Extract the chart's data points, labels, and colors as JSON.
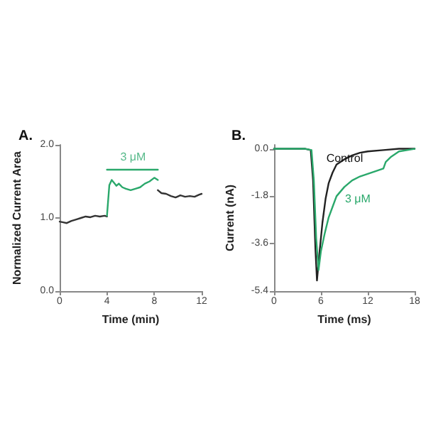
{
  "chart_data": [
    {
      "type": "line",
      "title": "A.",
      "xlabel": "Time (min)",
      "ylabel": "Normalized Current Area",
      "xlim": [
        0,
        12
      ],
      "xticks": [
        0,
        4,
        8,
        12
      ],
      "ylim": [
        0,
        2
      ],
      "yticks": [
        {
          "value": 0,
          "label": "0.0"
        },
        {
          "value": 1,
          "label": "1.0"
        },
        {
          "value": 2,
          "label": "2.0"
        }
      ],
      "grid": false,
      "legend": false,
      "marker": "none",
      "series": [
        {
          "color": "#333333",
          "x": [
            0,
            0.3,
            0.6,
            1,
            1.4,
            1.8,
            2.2,
            2.6,
            3,
            3.4,
            3.8,
            4,
            4.1,
            8.3,
            8.6,
            9,
            9.4,
            9.8,
            10.2,
            10.6,
            11,
            11.4,
            11.8,
            12
          ],
          "values": [
            0.95,
            0.94,
            0.93,
            0.96,
            0.98,
            1.0,
            1.02,
            1.01,
            1.03,
            1.02,
            1.03,
            1.02,
            null,
            1.38,
            1.34,
            1.33,
            1.3,
            1.28,
            1.31,
            1.29,
            1.3,
            1.29,
            1.32,
            1.33
          ]
        },
        {
          "color": "#2aa86b",
          "x": [
            4,
            4.2,
            4.4,
            4.6,
            4.8,
            5,
            5.3,
            5.6,
            6,
            6.4,
            6.8,
            7.2,
            7.6,
            8,
            8.3
          ],
          "values": [
            1.03,
            1.45,
            1.52,
            1.48,
            1.44,
            1.47,
            1.42,
            1.4,
            1.38,
            1.4,
            1.42,
            1.47,
            1.5,
            1.55,
            1.52
          ]
        },
        {
          "color": "#2aa86b",
          "x": [
            4,
            8.3
          ],
          "values": [
            1.66,
            1.66
          ]
        }
      ],
      "annotations": [
        {
          "text": "3 μM",
          "x": 6.2,
          "y": 1.66
        }
      ]
    },
    {
      "type": "line",
      "title": "B.",
      "xlabel": "Time (ms)",
      "ylabel": "Current (nA)",
      "xlim": [
        0,
        18
      ],
      "xticks": [
        0,
        6,
        12,
        18
      ],
      "ylim": [
        -5.4,
        0.15
      ],
      "yticks": [
        {
          "value": 0,
          "label": "0.0"
        },
        -1.8,
        -3.6,
        -5.4
      ],
      "grid": false,
      "legend": false,
      "marker": "none",
      "series": [
        {
          "name": "Control",
          "color": "#222222",
          "x": [
            0,
            2,
            4,
            4.7,
            5.0,
            5.3,
            5.5,
            5.8,
            6.2,
            6.6,
            7,
            7.5,
            8,
            9,
            10,
            11,
            12,
            14,
            16,
            18
          ],
          "values": [
            0,
            0,
            0,
            -0.05,
            -1.2,
            -3.8,
            -5.0,
            -4.0,
            -2.8,
            -1.9,
            -1.3,
            -0.9,
            -0.6,
            -0.4,
            -0.25,
            -0.15,
            -0.1,
            -0.05,
            0,
            0
          ]
        },
        {
          "name": "3 μM",
          "color": "#2aa86b",
          "x": [
            0,
            2,
            4,
            4.8,
            5.1,
            5.4,
            5.7,
            6.0,
            6.5,
            7,
            7.5,
            8,
            9,
            10,
            11,
            12,
            13,
            14,
            14.3,
            15,
            16,
            18
          ],
          "values": [
            0,
            0,
            0,
            -0.05,
            -1.2,
            -3.4,
            -4.6,
            -3.9,
            -3.2,
            -2.6,
            -2.2,
            -1.8,
            -1.45,
            -1.2,
            -1.05,
            -0.95,
            -0.85,
            -0.75,
            -0.5,
            -0.3,
            -0.1,
            0
          ]
        }
      ]
    }
  ]
}
